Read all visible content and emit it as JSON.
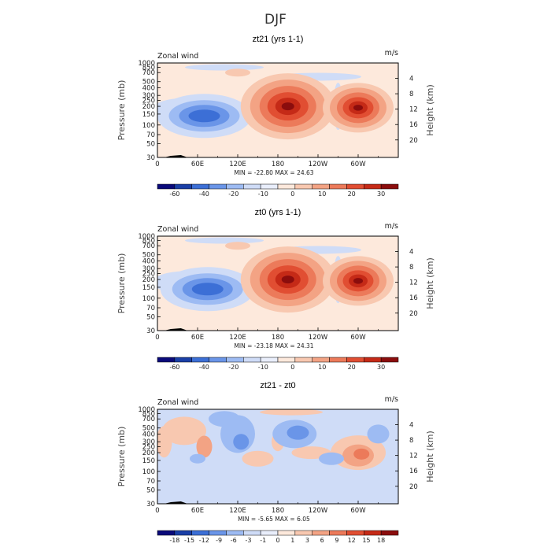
{
  "title": "DJF",
  "chart_data": [
    {
      "type": "heatmap",
      "title": "zt21 (yrs 1-1)",
      "variable": "Zonal wind",
      "units": "m/s",
      "ylabel": "Pressure (mb)",
      "ylabel_right": "Height (km)",
      "y_ticks": [
        30,
        50,
        70,
        100,
        150,
        200,
        250,
        300,
        400,
        500,
        700,
        850,
        1000
      ],
      "y_right_ticks": [
        4,
        8,
        12,
        16,
        20
      ],
      "x_ticks": [
        "0",
        "60E",
        "120E",
        "180",
        "120W",
        "60W"
      ],
      "xlim": [
        0,
        360
      ],
      "ylim": [
        1000,
        30
      ],
      "stats": "MIN = -22.80   MAX = 24.63",
      "colorbar_labels": [
        "-60",
        "-40",
        "-20",
        "-10",
        "0",
        "10",
        "20",
        "30"
      ],
      "features": [
        {
          "lon": 70,
          "p": 140,
          "value": -22.8
        },
        {
          "lon": 195,
          "p": 200,
          "value": 24.6
        },
        {
          "lon": 300,
          "p": 190,
          "value": 22
        }
      ]
    },
    {
      "type": "heatmap",
      "title": "zt0 (yrs 1-1)",
      "variable": "Zonal wind",
      "units": "m/s",
      "ylabel": "Pressure (mb)",
      "ylabel_right": "Height (km)",
      "y_ticks": [
        30,
        50,
        70,
        100,
        150,
        200,
        250,
        300,
        400,
        500,
        700,
        850,
        1000
      ],
      "y_right_ticks": [
        4,
        8,
        12,
        16,
        20
      ],
      "x_ticks": [
        "0",
        "60E",
        "120E",
        "180",
        "120W",
        "60W"
      ],
      "xlim": [
        0,
        360
      ],
      "ylim": [
        1000,
        30
      ],
      "stats": "MIN = -23.18   MAX = 24.31",
      "colorbar_labels": [
        "-60",
        "-40",
        "-20",
        "-10",
        "0",
        "10",
        "20",
        "30"
      ],
      "features": [
        {
          "lon": 75,
          "p": 140,
          "value": -23.2
        },
        {
          "lon": 195,
          "p": 200,
          "value": 24.3
        },
        {
          "lon": 300,
          "p": 190,
          "value": 21
        }
      ]
    },
    {
      "type": "heatmap",
      "title": "zt21 - zt0",
      "variable": "Zonal wind",
      "units": "m/s",
      "ylabel": "Pressure (mb)",
      "ylabel_right": "Height (km)",
      "y_ticks": [
        30,
        50,
        70,
        100,
        150,
        200,
        250,
        300,
        400,
        500,
        700,
        850,
        1000
      ],
      "y_right_ticks": [
        4,
        8,
        12,
        16,
        20
      ],
      "x_ticks": [
        "0",
        "60E",
        "120E",
        "180",
        "120W",
        "60W"
      ],
      "xlim": [
        0,
        360
      ],
      "ylim": [
        1000,
        30
      ],
      "stats": "MIN =  -5.65   MAX =   6.05",
      "colorbar_labels": [
        "-18",
        "-15",
        "-12",
        "-9",
        "-6",
        "-3",
        "-1",
        "0",
        "1",
        "3",
        "6",
        "9",
        "12",
        "15",
        "18"
      ],
      "features": [
        {
          "lon": 205,
          "p": 400,
          "value": -5.65
        },
        {
          "lon": 300,
          "p": 220,
          "value": 6.05
        }
      ]
    }
  ],
  "palette": [
    "#0a0a7a",
    "#1a3fa6",
    "#3c6fd6",
    "#6a95e8",
    "#9dbbf3",
    "#cfdcf7",
    "#e9eefb",
    "#fde9dc",
    "#f8c8b0",
    "#f3a384",
    "#ec7a5a",
    "#e14e32",
    "#c52a17",
    "#8b0d0d"
  ]
}
